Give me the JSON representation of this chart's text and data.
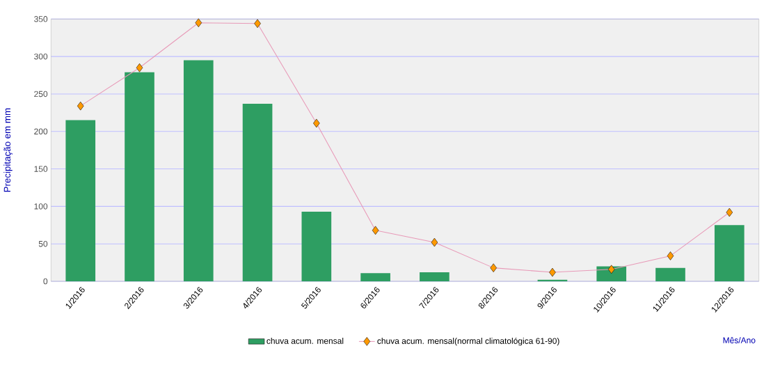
{
  "chart_data": {
    "type": "bar",
    "ylabel": "Precipitação em mm",
    "xlabel": "Mês/Ano",
    "categories": [
      "1/2016",
      "2/2016",
      "3/2016",
      "4/2016",
      "5/2016",
      "6/2016",
      "7/2016",
      "8/2016",
      "9/2016",
      "10/2016",
      "11/2016",
      "12/2016"
    ],
    "series": [
      {
        "name": "chuva acum. mensal",
        "color": "#2e9e62",
        "values": [
          215,
          279,
          295,
          237,
          93,
          11,
          12,
          null,
          2,
          20,
          18,
          75
        ]
      },
      {
        "name": "chuva acum. mensal(normal climatológica 61-90)",
        "type": "line",
        "color": "#e89ab8",
        "marker": "diamond",
        "values": [
          234,
          285,
          345,
          344,
          211,
          68,
          52,
          18,
          12,
          16,
          34,
          92
        ]
      }
    ],
    "ylim": [
      0,
      350
    ],
    "yticks": [
      0,
      50,
      100,
      150,
      200,
      250,
      300,
      350
    ],
    "grid": "y",
    "legend": "bottom"
  }
}
